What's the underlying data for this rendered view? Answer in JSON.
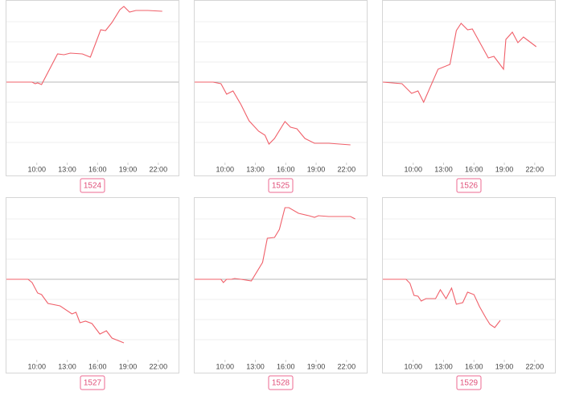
{
  "chart_data": [
    {
      "type": "line",
      "label": "1524",
      "color": "#f0606a",
      "x": [
        7,
        9.53,
        9.84,
        10.08,
        10.47,
        12.05,
        12.68,
        13.31,
        14.5,
        15.29,
        16.31,
        16.79,
        17.42,
        18.21,
        18.6,
        19.16,
        19.79,
        20.97,
        22.39
      ],
      "values": [
        0,
        0,
        -0.08,
        -0.04,
        -0.12,
        1.4,
        1.36,
        1.44,
        1.4,
        1.24,
        2.6,
        2.56,
        2.96,
        3.6,
        3.76,
        3.48,
        3.56,
        3.56,
        3.52
      ],
      "xlim": [
        7,
        24
      ],
      "ylim": [
        -4,
        4.08
      ],
      "xticks": [
        {
          "value": 10,
          "label": "10:00"
        },
        {
          "value": 13,
          "label": "13:00"
        },
        {
          "value": 16,
          "label": "16:00"
        },
        {
          "value": 19,
          "label": "19:00"
        },
        {
          "value": 22,
          "label": "22:00"
        }
      ],
      "yticks": [
        -3,
        -2,
        -1,
        0,
        1,
        2,
        3
      ],
      "grid": true
    },
    {
      "type": "line",
      "label": "1525",
      "color": "#f0606a",
      "x": [
        7,
        8.82,
        9.6,
        10.16,
        10.79,
        11.58,
        12.37,
        13.32,
        13.95,
        14.34,
        14.89,
        15.92,
        16.47,
        17.1,
        17.89,
        18.84,
        20.26,
        22.39
      ],
      "values": [
        0,
        0,
        -0.08,
        -0.6,
        -0.44,
        -1.12,
        -1.92,
        -2.44,
        -2.64,
        -3.08,
        -2.8,
        -1.96,
        -2.24,
        -2.32,
        -2.8,
        -3.04,
        -3.04,
        -3.12
      ],
      "xlim": [
        7,
        24
      ],
      "ylim": [
        -4,
        4.08
      ],
      "xticks": [
        {
          "value": 10,
          "label": "10:00"
        },
        {
          "value": 13,
          "label": "13:00"
        },
        {
          "value": 16,
          "label": "16:00"
        },
        {
          "value": 19,
          "label": "19:00"
        },
        {
          "value": 22,
          "label": "22:00"
        }
      ],
      "yticks": [
        -3,
        -2,
        -1,
        0,
        1,
        2,
        3
      ],
      "grid": true
    },
    {
      "type": "line",
      "label": "1526",
      "color": "#f0606a",
      "x": [
        7,
        8.89,
        9.84,
        10.47,
        11.03,
        12.45,
        13.63,
        14.26,
        14.73,
        15.37,
        15.84,
        17.42,
        17.97,
        18.92,
        19.15,
        19.79,
        20.34,
        20.89,
        22.15
      ],
      "values": [
        0,
        -0.08,
        -0.56,
        -0.44,
        -1,
        0.64,
        0.88,
        2.56,
        2.92,
        2.6,
        2.64,
        1.2,
        1.28,
        0.64,
        2.12,
        2.48,
        1.96,
        2.24,
        1.76
      ],
      "xlim": [
        7,
        24
      ],
      "ylim": [
        -4,
        4.08
      ],
      "xticks": [
        {
          "value": 10,
          "label": "10:00"
        },
        {
          "value": 13,
          "label": "13:00"
        },
        {
          "value": 16,
          "label": "16:00"
        },
        {
          "value": 19,
          "label": "19:00"
        },
        {
          "value": 22,
          "label": "22:00"
        }
      ],
      "yticks": [
        -3,
        -2,
        -1,
        0,
        1,
        2,
        3
      ],
      "grid": true
    },
    {
      "type": "line",
      "label": "1527",
      "color": "#f0606a",
      "x": [
        7,
        9.13,
        9.53,
        10.08,
        10.47,
        11.1,
        12.29,
        13.47,
        13.87,
        14.26,
        14.81,
        15.45,
        16.23,
        16.87,
        17.42,
        18.6
      ],
      "values": [
        0,
        0,
        -0.16,
        -0.68,
        -0.76,
        -1.2,
        -1.32,
        -1.72,
        -1.64,
        -2.16,
        -2.08,
        -2.2,
        -2.72,
        -2.56,
        -2.92,
        -3.16
      ],
      "xlim": [
        7,
        24
      ],
      "ylim": [
        -4,
        4.08
      ],
      "xticks": [
        {
          "value": 10,
          "label": "10:00"
        },
        {
          "value": 13,
          "label": "13:00"
        },
        {
          "value": 16,
          "label": "16:00"
        },
        {
          "value": 19,
          "label": "19:00"
        },
        {
          "value": 22,
          "label": "22:00"
        }
      ],
      "yticks": [
        -3,
        -2,
        -1,
        0,
        1,
        2,
        3
      ],
      "grid": true
    },
    {
      "type": "line",
      "label": "1528",
      "color": "#f0606a",
      "x": [
        7,
        9.6,
        9.84,
        10.16,
        10.63,
        10.95,
        11.58,
        12.6,
        13.71,
        14.18,
        14.89,
        15.37,
        15.92,
        16.31,
        17.26,
        18.29,
        18.84,
        19.23,
        20.26,
        22.39,
        22.86
      ],
      "values": [
        0,
        0,
        -0.16,
        0,
        0,
        0.04,
        0,
        -0.08,
        0.84,
        2.04,
        2.08,
        2.48,
        3.56,
        3.56,
        3.28,
        3.16,
        3.08,
        3.16,
        3.12,
        3.12,
        3
      ],
      "xlim": [
        7,
        24
      ],
      "ylim": [
        -4,
        4.08
      ],
      "xticks": [
        {
          "value": 10,
          "label": "10:00"
        },
        {
          "value": 13,
          "label": "13:00"
        },
        {
          "value": 16,
          "label": "16:00"
        },
        {
          "value": 19,
          "label": "19:00"
        },
        {
          "value": 22,
          "label": "22:00"
        }
      ],
      "yticks": [
        -3,
        -2,
        -1,
        0,
        1,
        2,
        3
      ],
      "grid": true
    },
    {
      "type": "line",
      "label": "1529",
      "color": "#f0606a",
      "x": [
        7,
        9.29,
        9.68,
        10.08,
        10.47,
        10.79,
        11.26,
        12.21,
        12.68,
        13.24,
        13.79,
        14.26,
        14.89,
        15.37,
        16,
        16.55,
        17.18,
        17.58,
        18.05,
        18.6
      ],
      "values": [
        0,
        0,
        -0.2,
        -0.8,
        -0.84,
        -1.08,
        -0.96,
        -0.96,
        -0.52,
        -0.96,
        -0.44,
        -1.24,
        -1.16,
        -0.64,
        -0.76,
        -1.36,
        -1.92,
        -2.24,
        -2.4,
        -2.04
      ],
      "xlim": [
        7,
        24
      ],
      "ylim": [
        -4,
        4.08
      ],
      "xticks": [
        {
          "value": 10,
          "label": "10:00"
        },
        {
          "value": 13,
          "label": "13:00"
        },
        {
          "value": 16,
          "label": "16:00"
        },
        {
          "value": 19,
          "label": "19:00"
        },
        {
          "value": 22,
          "label": "22:00"
        }
      ],
      "yticks": [
        -3,
        -2,
        -1,
        0,
        1,
        2,
        3
      ],
      "grid": true
    }
  ]
}
